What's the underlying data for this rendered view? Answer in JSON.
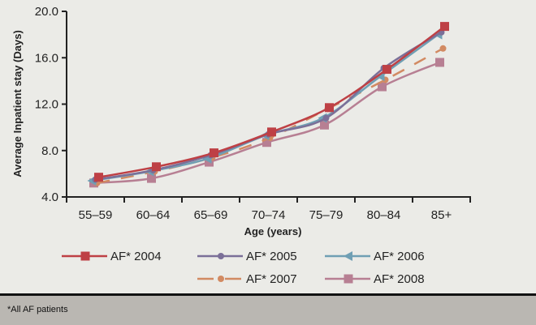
{
  "chart_data": {
    "type": "line",
    "title": "",
    "xlabel": "Age (years)",
    "ylabel": "Average Inpatient stay (Days)",
    "categories": [
      "55–59",
      "60–64",
      "65–69",
      "70–74",
      "75–79",
      "80–84",
      "85+"
    ],
    "ylim": [
      4.0,
      20.0
    ],
    "yticks": [
      "4.0",
      "8.0",
      "12.0",
      "16.0",
      "20.0"
    ],
    "ytick_values": [
      4,
      8,
      12,
      16,
      20
    ],
    "grid": false,
    "legend_position": "bottom",
    "series": [
      {
        "name": "AF* 2004",
        "color": "#be4045",
        "marker": "square",
        "dash": "solid",
        "values": [
          5.7,
          6.6,
          7.8,
          9.6,
          11.7,
          15.0,
          18.7
        ]
      },
      {
        "name": "AF* 2005",
        "color": "#7b6f98",
        "marker": "circle",
        "dash": "solid",
        "values": [
          5.5,
          6.3,
          7.6,
          9.4,
          10.8,
          15.1,
          18.2
        ]
      },
      {
        "name": "AF* 2006",
        "color": "#6f9fb4",
        "marker": "triangle",
        "dash": "solid",
        "values": [
          5.4,
          6.2,
          7.3,
          9.3,
          10.8,
          14.4,
          18.0
        ]
      },
      {
        "name": "AF* 2007",
        "color": "#d28a62",
        "marker": "circle",
        "dash": "dashed",
        "values": [
          5.2,
          6.2,
          7.4,
          9.1,
          11.6,
          14.1,
          16.8
        ]
      },
      {
        "name": "AF* 2008",
        "color": "#b77f93",
        "marker": "square",
        "dash": "solid",
        "values": [
          5.2,
          5.6,
          7.0,
          8.7,
          10.2,
          13.5,
          15.6
        ]
      }
    ]
  },
  "footnote": "*All AF patients"
}
